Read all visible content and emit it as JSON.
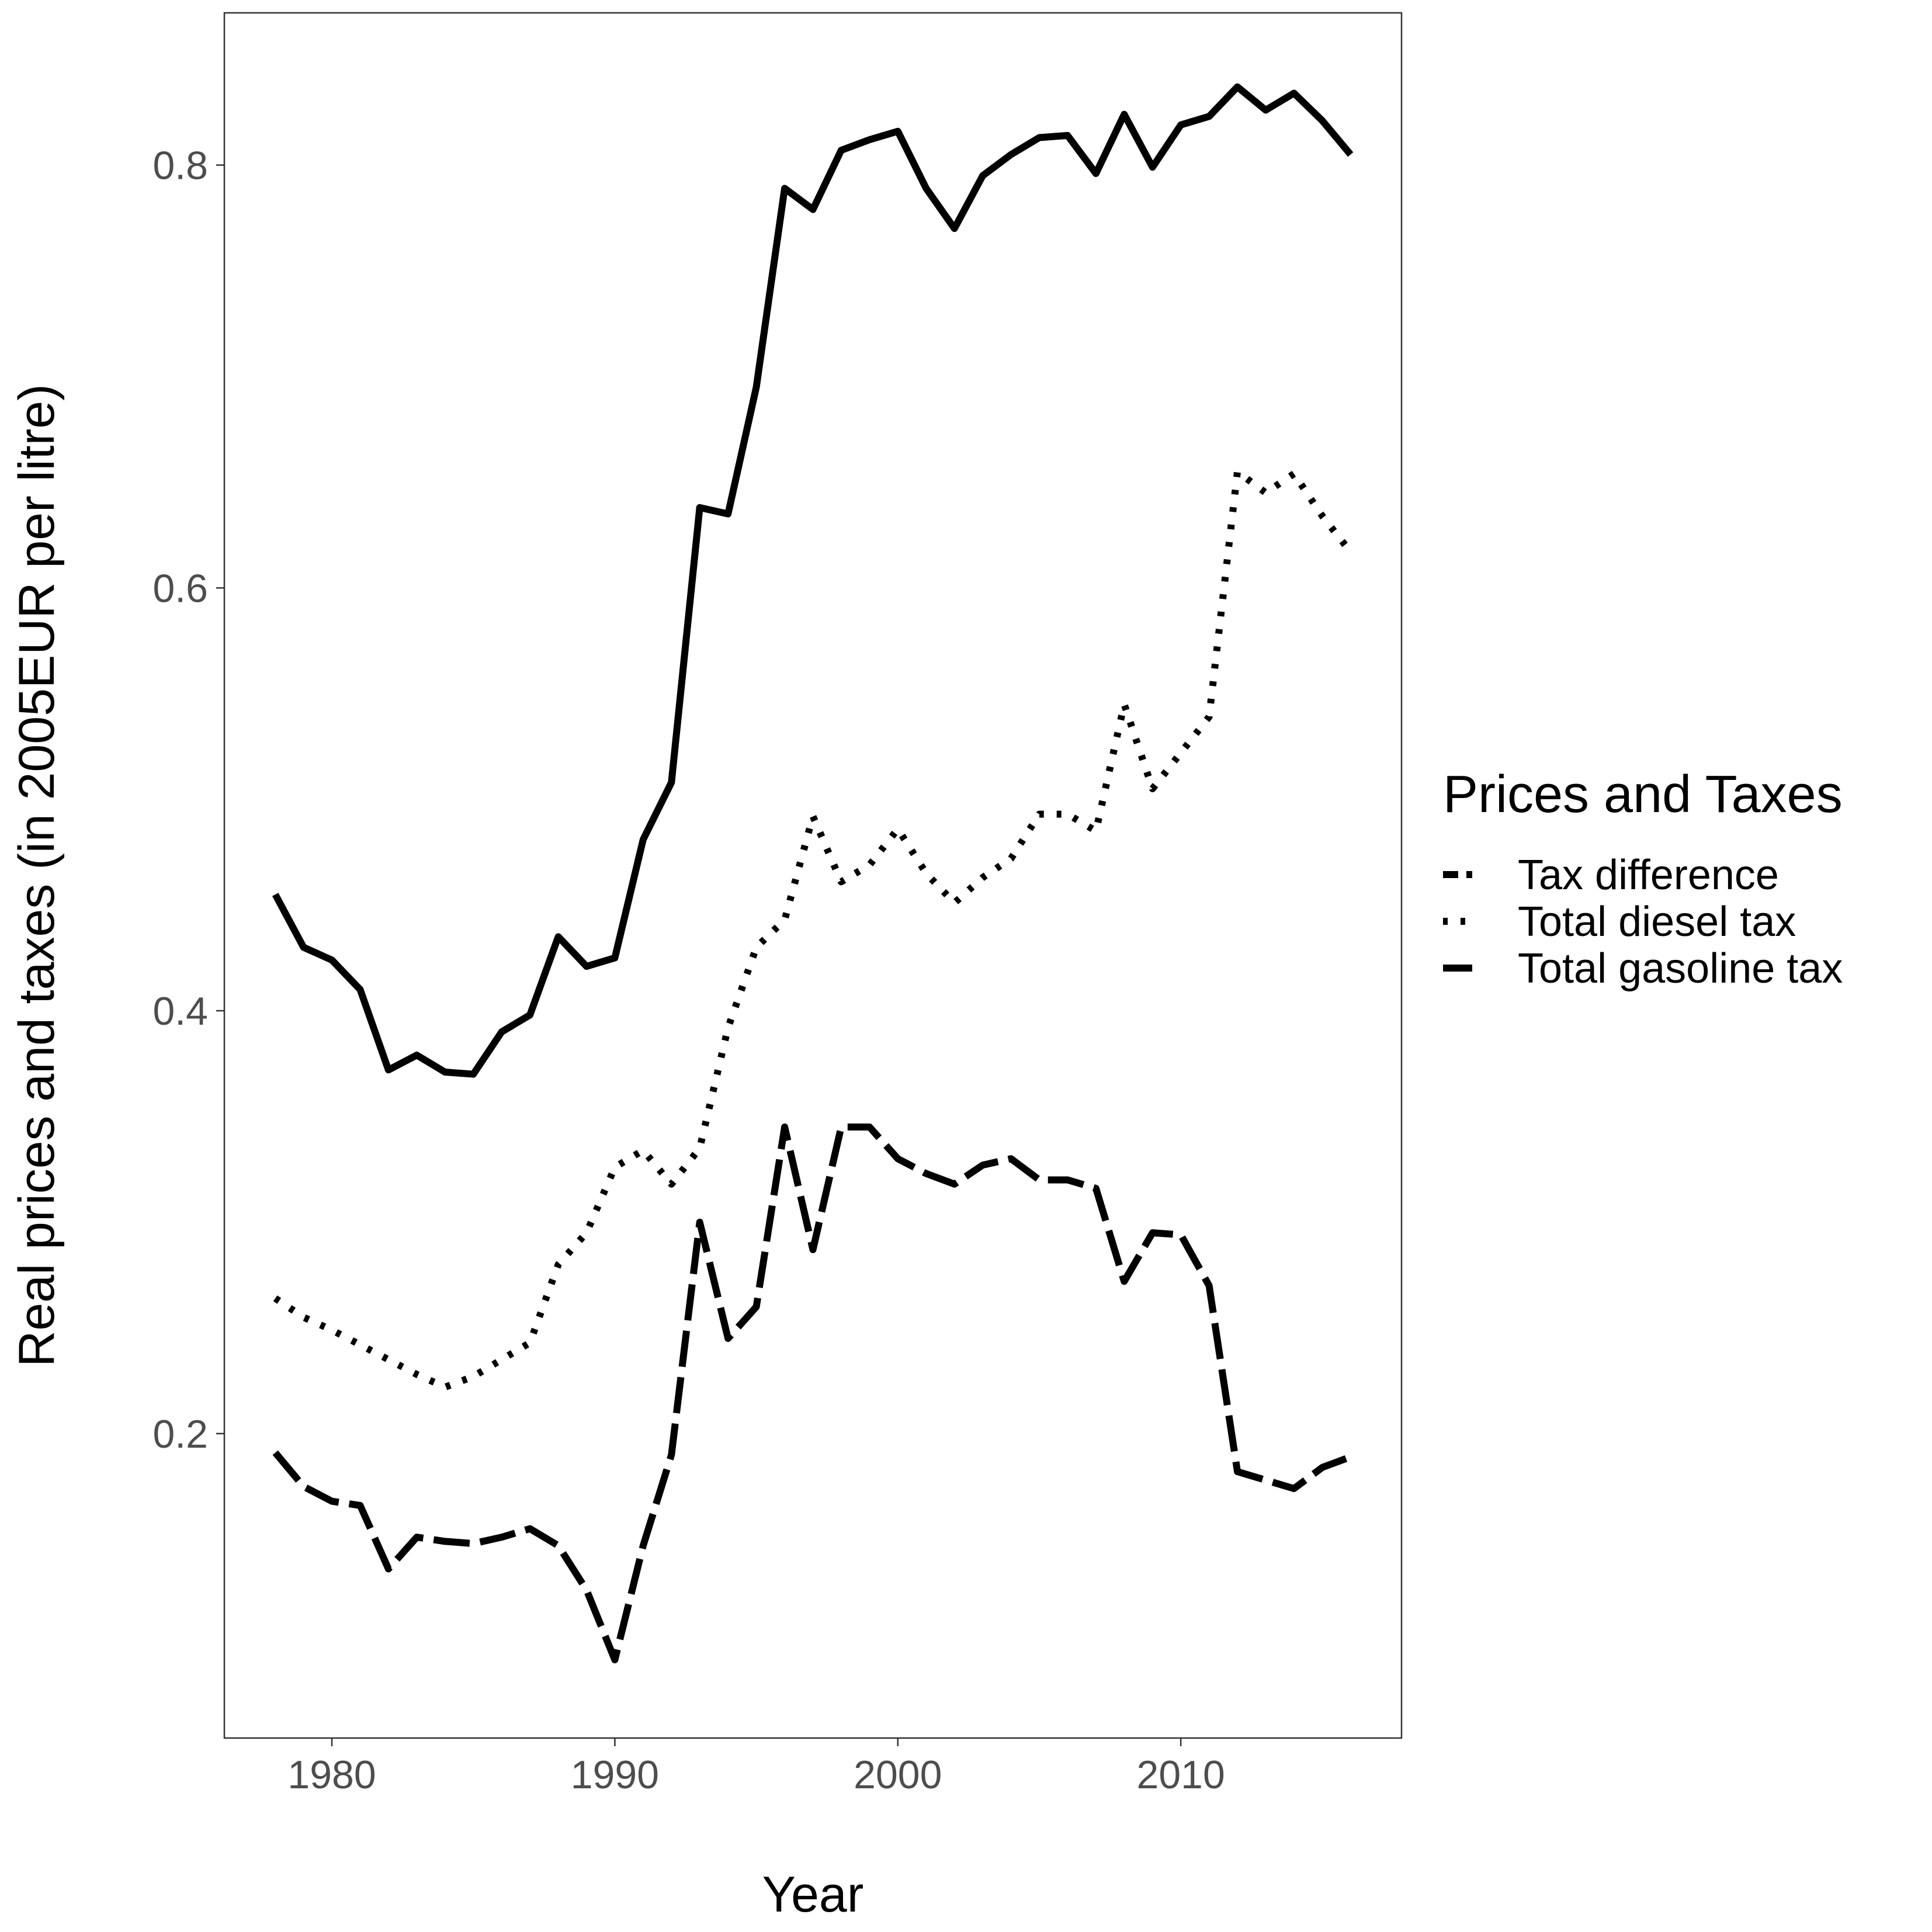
{
  "chart_data": {
    "type": "line",
    "title": "",
    "xlabel": "Year",
    "ylabel": "Real prices and taxes (in 2005EUR per litre)",
    "xlim": [
      1976.2,
      2017.8
    ],
    "ylim": [
      0.056,
      0.872
    ],
    "x_ticks": [
      1980,
      1990,
      2000,
      2010
    ],
    "y_ticks": [
      0.2,
      0.4,
      0.6,
      0.8
    ],
    "x_tick_labels": [
      "1980",
      "1990",
      "2000",
      "2010"
    ],
    "y_tick_labels": [
      "0.2",
      "0.4",
      "0.6",
      "0.8"
    ],
    "grid": false,
    "legend": {
      "title": "Prices and Taxes",
      "position": "right",
      "entries": [
        "Tax difference",
        "Total diesel tax",
        "Total gasoline tax"
      ]
    },
    "x": [
      1978,
      1979,
      1980,
      1981,
      1982,
      1983,
      1984,
      1985,
      1986,
      1987,
      1988,
      1989,
      1990,
      1991,
      1992,
      1993,
      1994,
      1995,
      1996,
      1997,
      1998,
      1999,
      2000,
      2001,
      2002,
      2003,
      2004,
      2005,
      2006,
      2007,
      2008,
      2009,
      2010,
      2011,
      2012,
      2013,
      2014,
      2015,
      2016
    ],
    "series": [
      {
        "name": "Total gasoline tax",
        "style": "solid",
        "values": [
          0.455,
          0.43,
          0.424,
          0.41,
          0.372,
          0.379,
          0.371,
          0.37,
          0.39,
          0.398,
          0.435,
          0.421,
          0.425,
          0.481,
          0.508,
          0.638,
          0.635,
          0.695,
          0.789,
          0.779,
          0.807,
          0.812,
          0.816,
          0.789,
          0.77,
          0.795,
          0.805,
          0.813,
          0.814,
          0.796,
          0.824,
          0.799,
          0.819,
          0.823,
          0.837,
          0.826,
          0.834,
          0.821,
          0.805
        ]
      },
      {
        "name": "Total diesel tax",
        "style": "dotted",
        "values": [
          0.264,
          0.255,
          0.249,
          0.242,
          0.235,
          0.228,
          0.222,
          0.227,
          0.235,
          0.243,
          0.28,
          0.295,
          0.326,
          0.334,
          0.318,
          0.335,
          0.392,
          0.43,
          0.443,
          0.492,
          0.461,
          0.469,
          0.486,
          0.465,
          0.451,
          0.463,
          0.472,
          0.493,
          0.493,
          0.485,
          0.545,
          0.505,
          0.522,
          0.539,
          0.655,
          0.645,
          0.654,
          0.634,
          0.617
        ]
      },
      {
        "name": "Tax difference",
        "style": "dashed",
        "values": [
          0.191,
          0.175,
          0.168,
          0.166,
          0.136,
          0.151,
          0.149,
          0.148,
          0.151,
          0.155,
          0.147,
          0.126,
          0.093,
          0.147,
          0.19,
          0.3,
          0.245,
          0.26,
          0.345,
          0.287,
          0.345,
          0.345,
          0.33,
          0.323,
          0.318,
          0.327,
          0.33,
          0.32,
          0.32,
          0.316,
          0.272,
          0.295,
          0.294,
          0.27,
          0.182,
          0.178,
          0.174,
          0.184,
          0.189
        ]
      }
    ]
  }
}
